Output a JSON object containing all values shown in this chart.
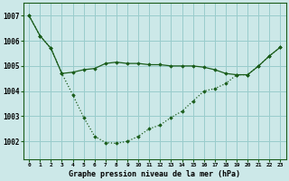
{
  "title": "Graphe pression niveau de la mer (hPa)",
  "background_color": "#cce8e8",
  "grid_color": "#99cccc",
  "line_color": "#1a5c1a",
  "x_labels": [
    "0",
    "1",
    "2",
    "3",
    "4",
    "5",
    "6",
    "7",
    "8",
    "9",
    "10",
    "11",
    "12",
    "13",
    "14",
    "15",
    "16",
    "17",
    "18",
    "19",
    "20",
    "21",
    "22",
    "23"
  ],
  "ylim": [
    1001.3,
    1007.5
  ],
  "yticks": [
    1002,
    1003,
    1004,
    1005,
    1006,
    1007
  ],
  "series1": [
    1007.0,
    1006.2,
    1005.7,
    1004.7,
    1004.75,
    1004.85,
    1004.9,
    1005.1,
    1005.15,
    1005.1,
    1005.1,
    1005.05,
    1005.05,
    1005.0,
    1005.0,
    1005.0,
    1004.95,
    1004.85,
    1004.7,
    1004.65,
    1004.65,
    1005.0,
    1005.4,
    1005.75
  ],
  "series2": [
    1007.0,
    1006.2,
    1005.7,
    1004.7,
    1003.85,
    1002.95,
    1002.2,
    1001.95,
    1001.92,
    1002.0,
    1002.2,
    1002.5,
    1002.65,
    1002.95,
    1003.2,
    1003.6,
    1004.0,
    1004.1,
    1004.3,
    1004.65,
    1004.65,
    1005.0,
    1005.4,
    1005.75
  ]
}
